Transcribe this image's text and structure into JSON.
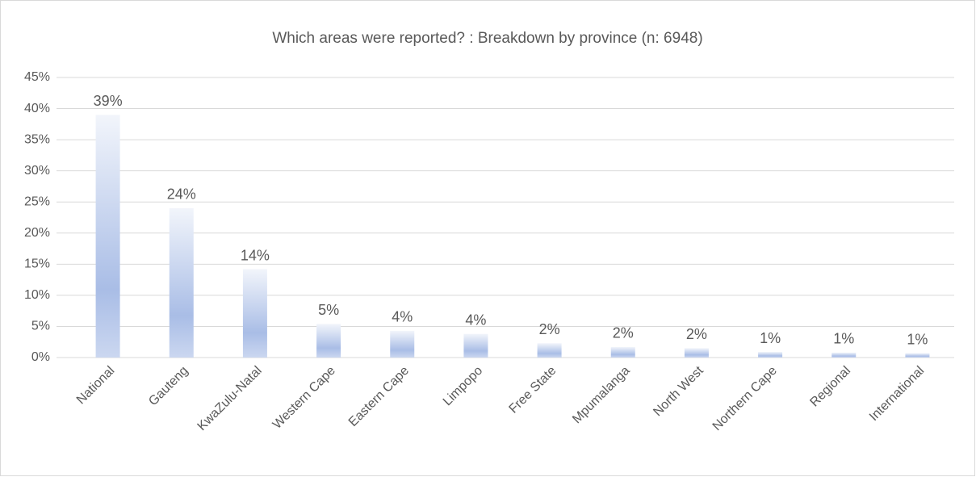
{
  "chart_data": {
    "type": "bar",
    "title": "Which areas were reported? : Breakdown by province (n: 6948)",
    "categories": [
      "National",
      "Gauteng",
      "KwaZulu-Natal",
      "Western Cape",
      "Eastern Cape",
      "Limpopo",
      "Free State",
      "Mpumalanga",
      "North West",
      "Northern Cape",
      "Regional",
      "International"
    ],
    "values": [
      39,
      24,
      14.2,
      5.4,
      4.3,
      3.8,
      2.3,
      1.7,
      1.5,
      0.9,
      0.8,
      0.7
    ],
    "value_labels": [
      "39%",
      "24%",
      "14%",
      "5%",
      "4%",
      "4%",
      "2%",
      "2%",
      "2%",
      "1%",
      "1%",
      "1%"
    ],
    "color": "#a9bde6",
    "ylim": [
      0,
      45
    ],
    "yticks": [
      {
        "value": 0,
        "label": "0%"
      },
      {
        "value": 5,
        "label": "5%"
      },
      {
        "value": 10,
        "label": "10%"
      },
      {
        "value": 15,
        "label": "15%"
      },
      {
        "value": 20,
        "label": "20%"
      },
      {
        "value": 25,
        "label": "25%"
      },
      {
        "value": 30,
        "label": "30%"
      },
      {
        "value": 35,
        "label": "35%"
      },
      {
        "value": 40,
        "label": "40%"
      },
      {
        "value": 45,
        "label": "45%"
      }
    ],
    "grid": true
  }
}
